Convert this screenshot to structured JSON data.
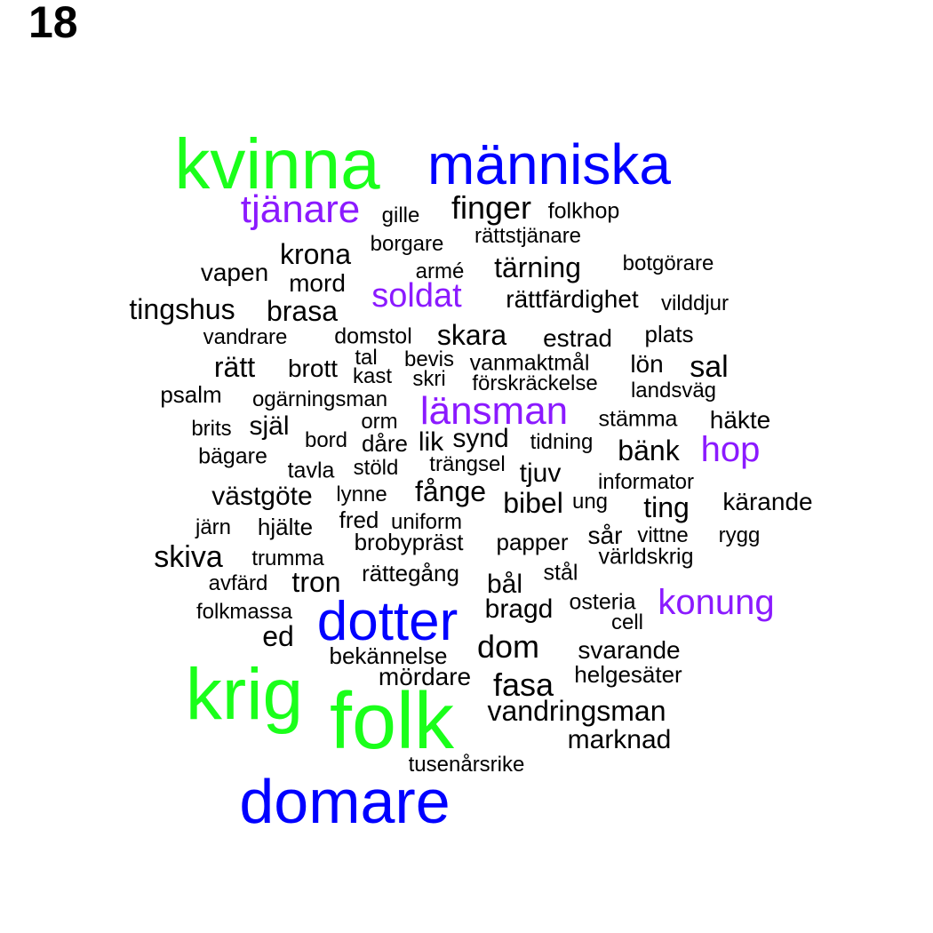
{
  "panel_label": "18",
  "colors": {
    "large": "#1aff1a",
    "major": "#0000ff",
    "medium": "#8b1aff",
    "normal": "#000000"
  },
  "words": [
    {
      "text": "kvinna",
      "weight": "large"
    },
    {
      "text": "människa",
      "weight": "major"
    },
    {
      "text": "tjänare",
      "weight": "medium"
    },
    {
      "text": "gille",
      "weight": "normal"
    },
    {
      "text": "finger",
      "weight": "normal"
    },
    {
      "text": "folkhop",
      "weight": "normal"
    },
    {
      "text": "rättstjänare",
      "weight": "normal"
    },
    {
      "text": "borgare",
      "weight": "normal"
    },
    {
      "text": "krona",
      "weight": "normal"
    },
    {
      "text": "vapen",
      "weight": "normal"
    },
    {
      "text": "mord",
      "weight": "normal"
    },
    {
      "text": "armé",
      "weight": "normal"
    },
    {
      "text": "tärning",
      "weight": "normal"
    },
    {
      "text": "botgörare",
      "weight": "normal"
    },
    {
      "text": "soldat",
      "weight": "medium"
    },
    {
      "text": "rättfärdighet",
      "weight": "normal"
    },
    {
      "text": "vilddjur",
      "weight": "normal"
    },
    {
      "text": "tingshus",
      "weight": "normal"
    },
    {
      "text": "brasa",
      "weight": "normal"
    },
    {
      "text": "vandrare",
      "weight": "normal"
    },
    {
      "text": "domstol",
      "weight": "normal"
    },
    {
      "text": "skara",
      "weight": "normal"
    },
    {
      "text": "estrad",
      "weight": "normal"
    },
    {
      "text": "plats",
      "weight": "normal"
    },
    {
      "text": "rätt",
      "weight": "normal"
    },
    {
      "text": "brott",
      "weight": "normal"
    },
    {
      "text": "tal",
      "weight": "normal"
    },
    {
      "text": "bevis",
      "weight": "normal"
    },
    {
      "text": "vanmaktmål",
      "weight": "normal"
    },
    {
      "text": "lön",
      "weight": "normal"
    },
    {
      "text": "sal",
      "weight": "normal"
    },
    {
      "text": "kast",
      "weight": "normal"
    },
    {
      "text": "skri",
      "weight": "normal"
    },
    {
      "text": "förskräckelse",
      "weight": "normal"
    },
    {
      "text": "landsväg",
      "weight": "normal"
    },
    {
      "text": "psalm",
      "weight": "normal"
    },
    {
      "text": "ogärningsman",
      "weight": "normal"
    },
    {
      "text": "länsman",
      "weight": "medium"
    },
    {
      "text": "stämma",
      "weight": "normal"
    },
    {
      "text": "häkte",
      "weight": "normal"
    },
    {
      "text": "brits",
      "weight": "normal"
    },
    {
      "text": "själ",
      "weight": "normal"
    },
    {
      "text": "orm",
      "weight": "normal"
    },
    {
      "text": "bord",
      "weight": "normal"
    },
    {
      "text": "dåre",
      "weight": "normal"
    },
    {
      "text": "lik",
      "weight": "normal"
    },
    {
      "text": "synd",
      "weight": "normal"
    },
    {
      "text": "tidning",
      "weight": "normal"
    },
    {
      "text": "bänk",
      "weight": "normal"
    },
    {
      "text": "hop",
      "weight": "medium"
    },
    {
      "text": "bägare",
      "weight": "normal"
    },
    {
      "text": "tavla",
      "weight": "normal"
    },
    {
      "text": "stöld",
      "weight": "normal"
    },
    {
      "text": "trängsel",
      "weight": "normal"
    },
    {
      "text": "tjuv",
      "weight": "normal"
    },
    {
      "text": "informator",
      "weight": "normal"
    },
    {
      "text": "västgöte",
      "weight": "normal"
    },
    {
      "text": "lynne",
      "weight": "normal"
    },
    {
      "text": "fånge",
      "weight": "normal"
    },
    {
      "text": "bibel",
      "weight": "normal"
    },
    {
      "text": "ung",
      "weight": "normal"
    },
    {
      "text": "ting",
      "weight": "normal"
    },
    {
      "text": "kärande",
      "weight": "normal"
    },
    {
      "text": "järn",
      "weight": "normal"
    },
    {
      "text": "hjälte",
      "weight": "normal"
    },
    {
      "text": "fred",
      "weight": "normal"
    },
    {
      "text": "uniform",
      "weight": "normal"
    },
    {
      "text": "sår",
      "weight": "normal"
    },
    {
      "text": "vittne",
      "weight": "normal"
    },
    {
      "text": "rygg",
      "weight": "normal"
    },
    {
      "text": "skiva",
      "weight": "normal"
    },
    {
      "text": "brobypräst",
      "weight": "normal"
    },
    {
      "text": "papper",
      "weight": "normal"
    },
    {
      "text": "världskrig",
      "weight": "normal"
    },
    {
      "text": "trumma",
      "weight": "normal"
    },
    {
      "text": "avfärd",
      "weight": "normal"
    },
    {
      "text": "tron",
      "weight": "normal"
    },
    {
      "text": "rättegång",
      "weight": "normal"
    },
    {
      "text": "stål",
      "weight": "normal"
    },
    {
      "text": "bål",
      "weight": "normal"
    },
    {
      "text": "konung",
      "weight": "medium"
    },
    {
      "text": "folkmassa",
      "weight": "normal"
    },
    {
      "text": "dotter",
      "weight": "major"
    },
    {
      "text": "bragd",
      "weight": "normal"
    },
    {
      "text": "osteria",
      "weight": "normal"
    },
    {
      "text": "cell",
      "weight": "normal"
    },
    {
      "text": "ed",
      "weight": "normal"
    },
    {
      "text": "bekännelse",
      "weight": "normal"
    },
    {
      "text": "dom",
      "weight": "normal"
    },
    {
      "text": "svarande",
      "weight": "normal"
    },
    {
      "text": "mördare",
      "weight": "normal"
    },
    {
      "text": "helgesäter",
      "weight": "normal"
    },
    {
      "text": "krig",
      "weight": "large"
    },
    {
      "text": "fasa",
      "weight": "normal"
    },
    {
      "text": "folk",
      "weight": "large"
    },
    {
      "text": "vandringsman",
      "weight": "normal"
    },
    {
      "text": "marknad",
      "weight": "normal"
    },
    {
      "text": "tusenårsrike",
      "weight": "normal"
    },
    {
      "text": "domare",
      "weight": "major"
    }
  ]
}
